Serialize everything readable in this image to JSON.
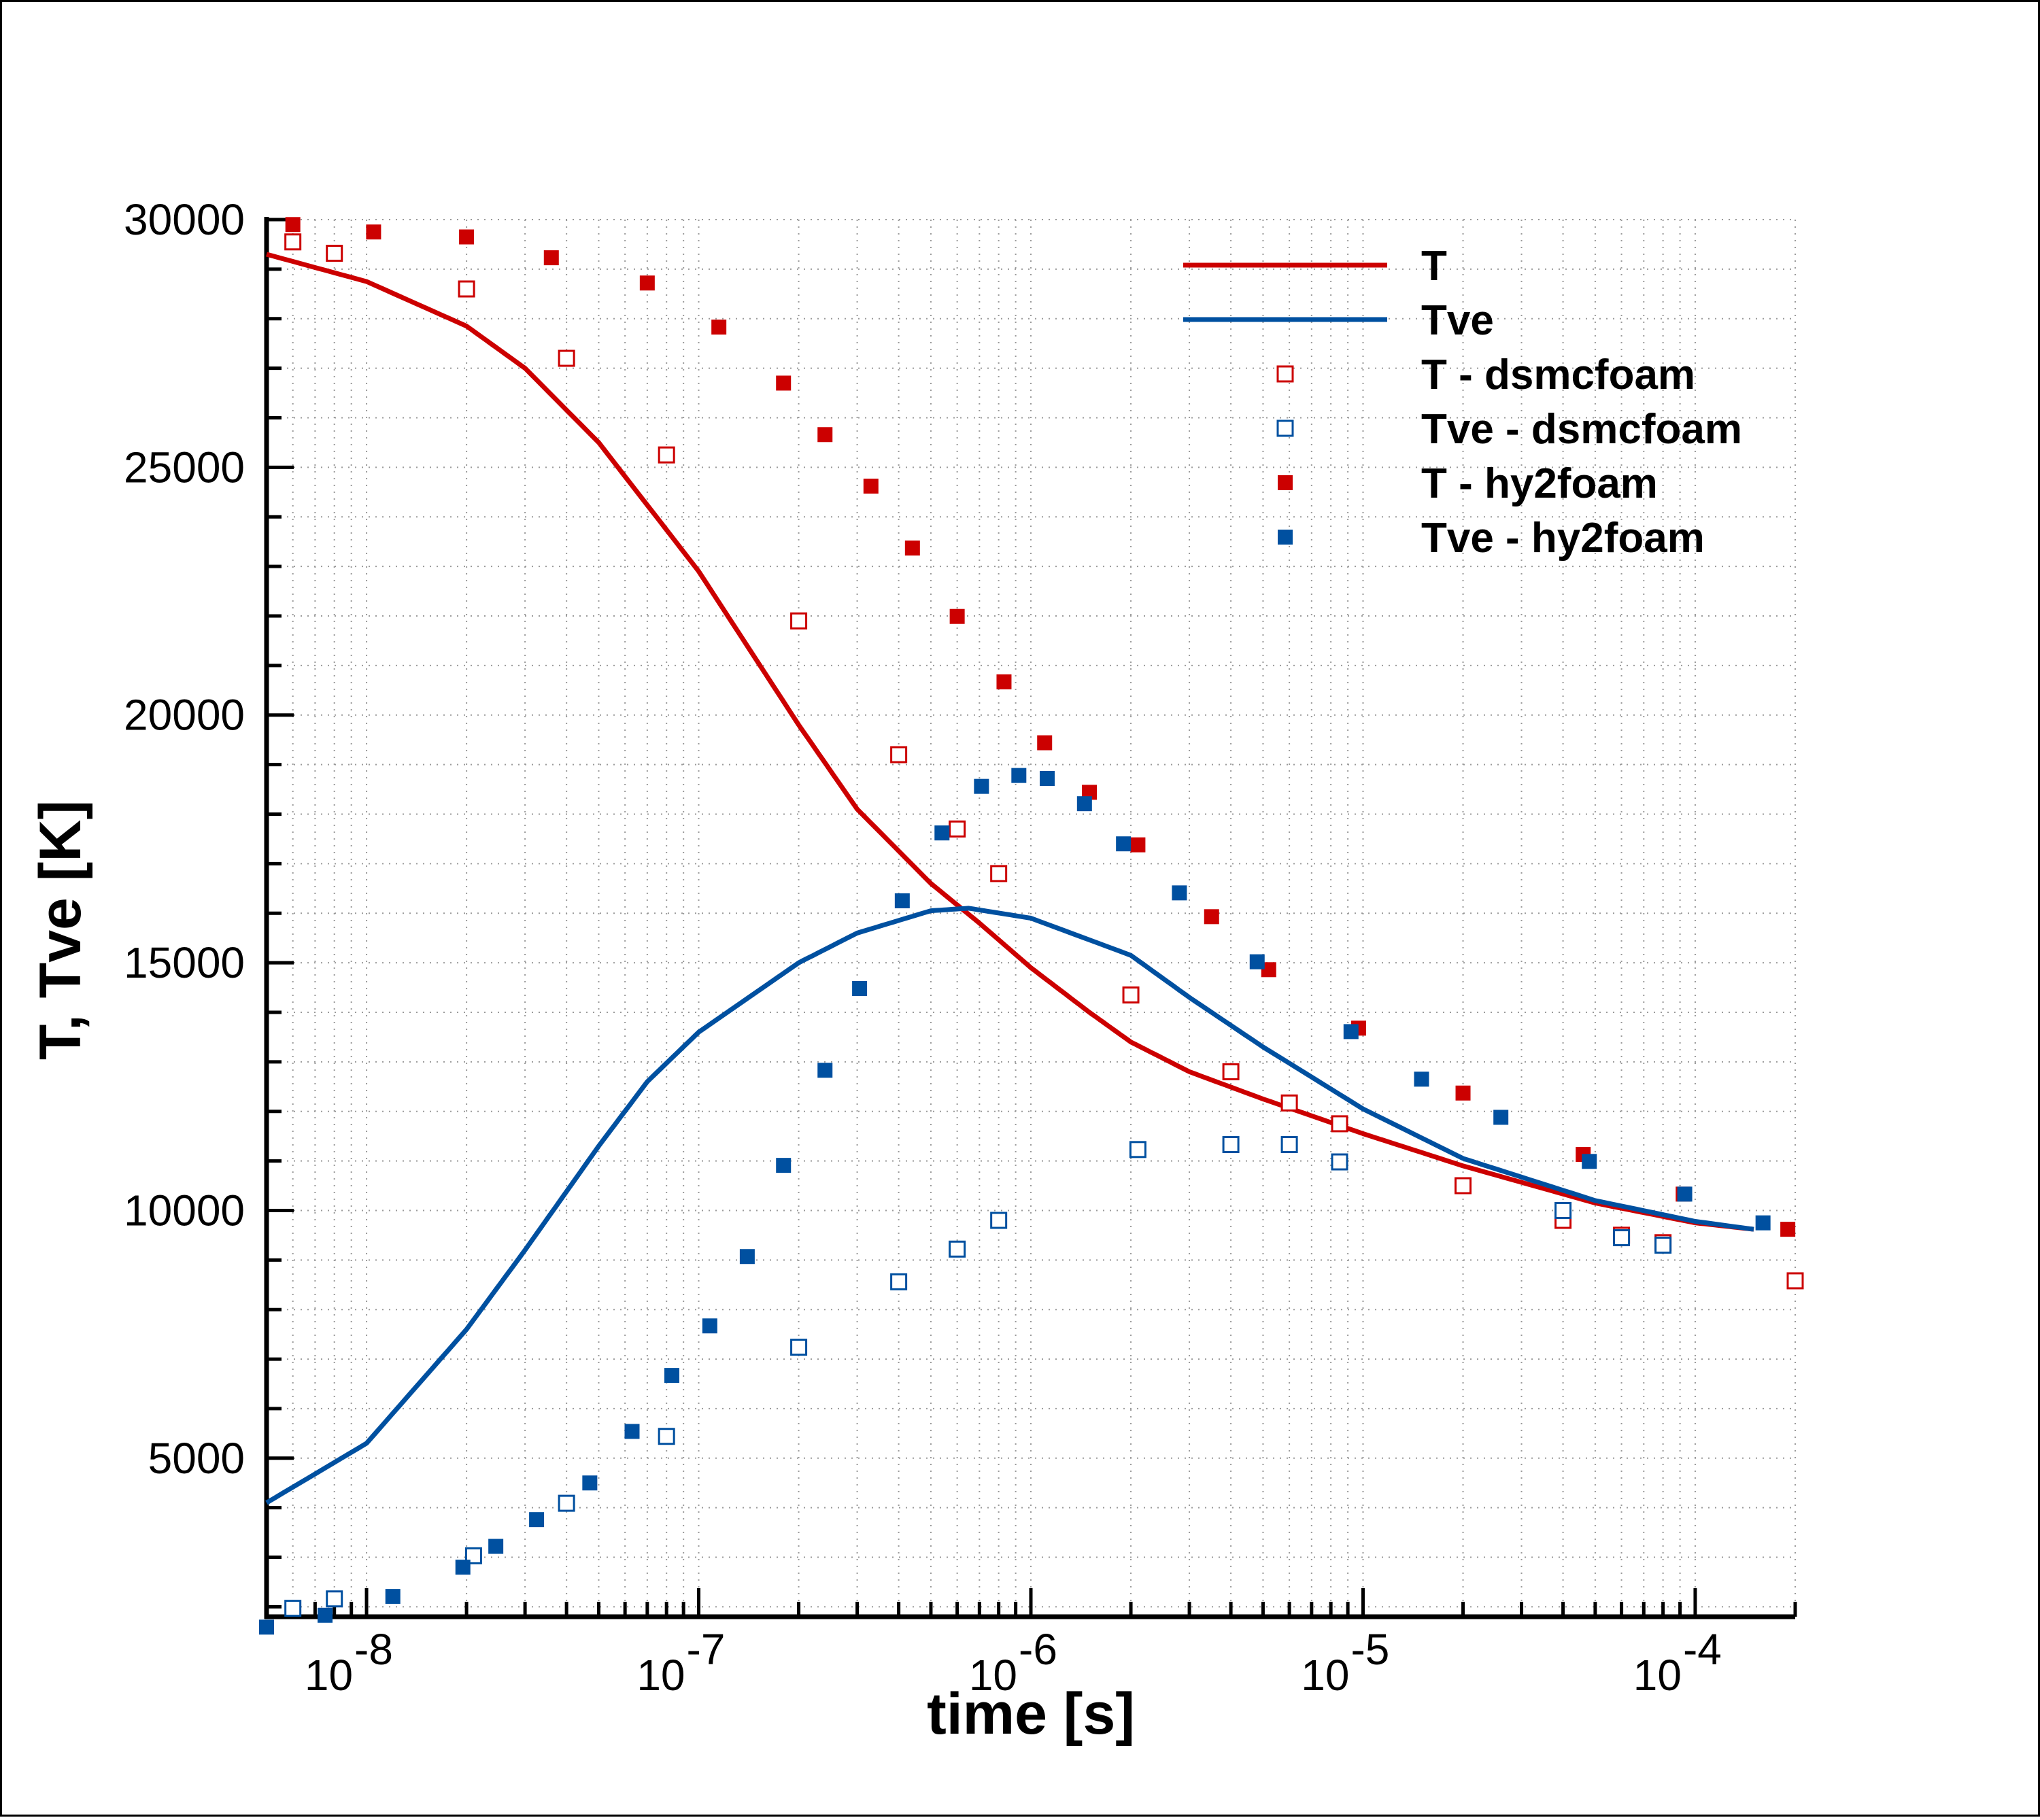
{
  "chart_data": {
    "type": "scatter",
    "title": "",
    "xlabel": "time [s]",
    "ylabel": "T, Tve [K]",
    "x_scale": "log",
    "xlim": [
      5e-09,
      0.0002
    ],
    "ylim": [
      1800,
      30000
    ],
    "grid": true,
    "legend_position": "top-right",
    "x_ticks": [
      {
        "value": 1e-08,
        "base": "10",
        "exp": "-8"
      },
      {
        "value": 1e-07,
        "base": "10",
        "exp": "-7"
      },
      {
        "value": 1e-06,
        "base": "10",
        "exp": "-6"
      },
      {
        "value": 1e-05,
        "base": "10",
        "exp": "-5"
      },
      {
        "value": 0.0001,
        "base": "10",
        "exp": "-4"
      }
    ],
    "y_ticks": [
      {
        "value": 5000,
        "label": "5000"
      },
      {
        "value": 10000,
        "label": "10000"
      },
      {
        "value": 15000,
        "label": "15000"
      },
      {
        "value": 20000,
        "label": "20000"
      },
      {
        "value": 25000,
        "label": "25000"
      },
      {
        "value": 30000,
        "label": "30000"
      }
    ],
    "series": [
      {
        "name": "T",
        "kind": "line",
        "color": "#cc0000",
        "points": [
          [
            5e-09,
            29300
          ],
          [
            1e-08,
            28750
          ],
          [
            2e-08,
            27850
          ],
          [
            3e-08,
            27000
          ],
          [
            5e-08,
            25500
          ],
          [
            1e-07,
            22900
          ],
          [
            2e-07,
            19800
          ],
          [
            3e-07,
            18100
          ],
          [
            5e-07,
            16600
          ],
          [
            7e-07,
            15800
          ],
          [
            1e-06,
            14900
          ],
          [
            1.5e-06,
            14000
          ],
          [
            2e-06,
            13400
          ],
          [
            3e-06,
            12800
          ],
          [
            5e-06,
            12250
          ],
          [
            1e-05,
            11550
          ],
          [
            2e-05,
            10900
          ],
          [
            5e-05,
            10150
          ],
          [
            0.0001,
            9750
          ],
          [
            0.00015,
            9620
          ]
        ]
      },
      {
        "name": "Tve",
        "kind": "line",
        "color": "#0050a0",
        "points": [
          [
            5e-09,
            4100
          ],
          [
            1e-08,
            5300
          ],
          [
            2e-08,
            7600
          ],
          [
            3e-08,
            9200
          ],
          [
            5e-08,
            11300
          ],
          [
            7e-08,
            12600
          ],
          [
            1e-07,
            13600
          ],
          [
            2e-07,
            15000
          ],
          [
            3e-07,
            15600
          ],
          [
            5e-07,
            16050
          ],
          [
            6.5e-07,
            16100
          ],
          [
            1e-06,
            15900
          ],
          [
            2e-06,
            15150
          ],
          [
            3e-06,
            14300
          ],
          [
            5e-06,
            13300
          ],
          [
            1e-05,
            12050
          ],
          [
            2e-05,
            11050
          ],
          [
            5e-05,
            10200
          ],
          [
            0.0001,
            9780
          ],
          [
            0.00015,
            9620
          ]
        ]
      },
      {
        "name": "T - dsmcfoam",
        "kind": "marker-open",
        "color": "#cc0000",
        "points": [
          [
            6e-09,
            29550
          ],
          [
            8e-09,
            29320
          ],
          [
            2e-08,
            28600
          ],
          [
            4e-08,
            27200
          ],
          [
            8e-08,
            25250
          ],
          [
            2e-07,
            21900
          ],
          [
            4e-07,
            19200
          ],
          [
            6e-07,
            17700
          ],
          [
            8e-07,
            16800
          ],
          [
            2e-06,
            14350
          ],
          [
            4e-06,
            12800
          ],
          [
            6e-06,
            12170
          ],
          [
            8.5e-06,
            11750
          ],
          [
            2e-05,
            10500
          ],
          [
            4e-05,
            9800
          ],
          [
            6e-05,
            9500
          ],
          [
            8e-05,
            9350
          ],
          [
            0.0002,
            8580
          ]
        ]
      },
      {
        "name": "Tve - dsmcfoam",
        "kind": "marker-open",
        "color": "#0050a0",
        "points": [
          [
            6e-09,
            1970
          ],
          [
            8e-09,
            2160
          ],
          [
            2.1e-08,
            3030
          ],
          [
            4e-08,
            4090
          ],
          [
            8e-08,
            5440
          ],
          [
            2e-07,
            7240
          ],
          [
            4e-07,
            8560
          ],
          [
            6e-07,
            9220
          ],
          [
            8e-07,
            9800
          ],
          [
            2.1e-06,
            11230
          ],
          [
            4e-06,
            11330
          ],
          [
            6e-06,
            11330
          ],
          [
            8.5e-06,
            10980
          ],
          [
            4e-05,
            10000
          ],
          [
            6e-05,
            9450
          ],
          [
            8e-05,
            9300
          ]
        ]
      },
      {
        "name": "T - hy2foam",
        "kind": "marker-filled",
        "color": "#cc0000",
        "points": [
          [
            6e-09,
            29900
          ],
          [
            1.05e-08,
            29750
          ],
          [
            2e-08,
            29650
          ],
          [
            3.6e-08,
            29230
          ],
          [
            7e-08,
            28720
          ],
          [
            1.15e-07,
            27830
          ],
          [
            1.8e-07,
            26700
          ],
          [
            2.4e-07,
            25660
          ],
          [
            3.3e-07,
            24620
          ],
          [
            4.4e-07,
            23370
          ],
          [
            6e-07,
            21990
          ],
          [
            8.3e-07,
            20670
          ],
          [
            1.1e-06,
            19440
          ],
          [
            1.5e-06,
            18440
          ],
          [
            2.1e-06,
            17380
          ],
          [
            3.5e-06,
            15930
          ],
          [
            5.2e-06,
            14860
          ],
          [
            9.7e-06,
            13680
          ],
          [
            2e-05,
            12370
          ],
          [
            4.6e-05,
            11130
          ],
          [
            9.2e-05,
            10330
          ],
          [
            0.00019,
            9620
          ]
        ]
      },
      {
        "name": "Tve - hy2foam",
        "kind": "marker-filled",
        "color": "#0050a0",
        "points": [
          [
            5e-09,
            1590
          ],
          [
            7.5e-09,
            1830
          ],
          [
            1.2e-08,
            2210
          ],
          [
            1.95e-08,
            2800
          ],
          [
            2.45e-08,
            3220
          ],
          [
            3.25e-08,
            3760
          ],
          [
            4.7e-08,
            4500
          ],
          [
            6.3e-08,
            5540
          ],
          [
            8.3e-08,
            6670
          ],
          [
            1.08e-07,
            7670
          ],
          [
            1.4e-07,
            9070
          ],
          [
            1.8e-07,
            10910
          ],
          [
            2.4e-07,
            12830
          ],
          [
            3.05e-07,
            14480
          ],
          [
            4.1e-07,
            16250
          ],
          [
            5.4e-07,
            17620
          ],
          [
            7.1e-07,
            18560
          ],
          [
            9.2e-07,
            18780
          ],
          [
            1.12e-06,
            18720
          ],
          [
            1.45e-06,
            18210
          ],
          [
            1.9e-06,
            17400
          ],
          [
            2.8e-06,
            16410
          ],
          [
            4.8e-06,
            15020
          ],
          [
            9.2e-06,
            13610
          ],
          [
            1.5e-05,
            12650
          ],
          [
            2.6e-05,
            11880
          ],
          [
            4.8e-05,
            10990
          ],
          [
            9.3e-05,
            10330
          ],
          [
            0.00016,
            9750
          ]
        ]
      }
    ]
  }
}
